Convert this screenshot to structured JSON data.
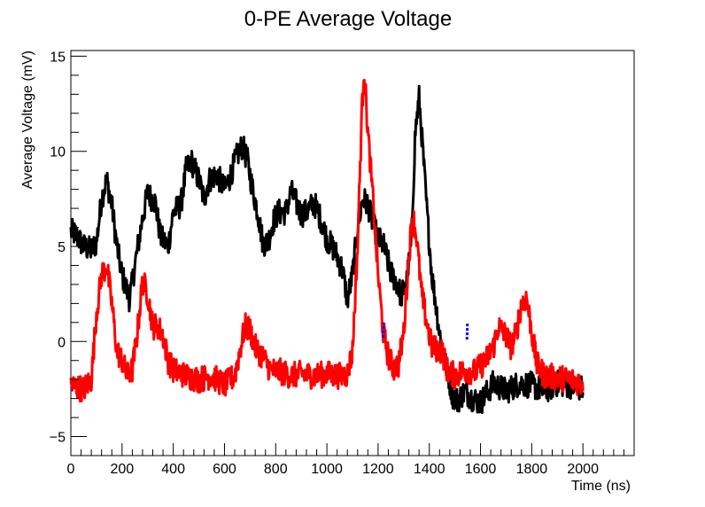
{
  "chart_data": {
    "type": "line",
    "title": "0-PE Average Voltage",
    "xlabel": "Time (ns)",
    "ylabel": "Average Voltage (mV)",
    "xlim": [
      0,
      2200
    ],
    "ylim": [
      -6,
      15.3
    ],
    "x_ticks": [
      0,
      200,
      400,
      600,
      800,
      1000,
      1200,
      1400,
      1600,
      1800,
      2000
    ],
    "y_ticks": [
      -5,
      0,
      5,
      10,
      15
    ],
    "grid": false,
    "legend": "none",
    "noise_amplitude_mV": 0.7,
    "series": [
      {
        "color": "#000000",
        "line_style": "solid",
        "points": [
          [
            0,
            5.8
          ],
          [
            20,
            5.6
          ],
          [
            50,
            5.0
          ],
          [
            80,
            4.8
          ],
          [
            100,
            5.2
          ],
          [
            120,
            7.5
          ],
          [
            140,
            8.5
          ],
          [
            160,
            7.2
          ],
          [
            180,
            5.0
          ],
          [
            200,
            3.5
          ],
          [
            230,
            2.2
          ],
          [
            250,
            4.0
          ],
          [
            280,
            6.5
          ],
          [
            300,
            7.8
          ],
          [
            330,
            7.3
          ],
          [
            350,
            5.5
          ],
          [
            380,
            5.0
          ],
          [
            400,
            6.8
          ],
          [
            430,
            7.2
          ],
          [
            450,
            9.0
          ],
          [
            470,
            9.5
          ],
          [
            500,
            8.5
          ],
          [
            520,
            7.5
          ],
          [
            540,
            8.5
          ],
          [
            570,
            8.8
          ],
          [
            600,
            8.0
          ],
          [
            620,
            8.6
          ],
          [
            650,
            9.8
          ],
          [
            670,
            10.3
          ],
          [
            690,
            9.5
          ],
          [
            710,
            8.0
          ],
          [
            730,
            6.8
          ],
          [
            750,
            5.2
          ],
          [
            770,
            5.2
          ],
          [
            790,
            6.3
          ],
          [
            810,
            6.8
          ],
          [
            840,
            6.8
          ],
          [
            860,
            7.9
          ],
          [
            880,
            7.3
          ],
          [
            900,
            6.7
          ],
          [
            920,
            6.8
          ],
          [
            950,
            7.3
          ],
          [
            980,
            6.3
          ],
          [
            1000,
            5.4
          ],
          [
            1030,
            4.8
          ],
          [
            1060,
            3.8
          ],
          [
            1080,
            2.2
          ],
          [
            1100,
            3.5
          ],
          [
            1120,
            6.0
          ],
          [
            1140,
            7.5
          ],
          [
            1160,
            7.2
          ],
          [
            1180,
            6.2
          ],
          [
            1200,
            5.4
          ],
          [
            1220,
            5.1
          ],
          [
            1250,
            3.6
          ],
          [
            1270,
            3.2
          ],
          [
            1290,
            2.4
          ],
          [
            1310,
            3.0
          ],
          [
            1330,
            5.2
          ],
          [
            1345,
            11.0
          ],
          [
            1360,
            12.8
          ],
          [
            1375,
            10.0
          ],
          [
            1390,
            7.0
          ],
          [
            1410,
            3.5
          ],
          [
            1430,
            1.5
          ],
          [
            1450,
            -0.5
          ],
          [
            1470,
            -1.5
          ],
          [
            1490,
            -2.8
          ],
          [
            1510,
            -3.1
          ],
          [
            1540,
            -2.6
          ],
          [
            1570,
            -3.0
          ],
          [
            1600,
            -3.2
          ],
          [
            1650,
            -2.2
          ],
          [
            1700,
            -2.6
          ],
          [
            1750,
            -2.2
          ],
          [
            1800,
            -2.3
          ],
          [
            1850,
            -2.6
          ],
          [
            1900,
            -2.2
          ],
          [
            1950,
            -2.3
          ],
          [
            2000,
            -2.5
          ]
        ]
      },
      {
        "color": "#ff0000",
        "line_style": "solid",
        "points": [
          [
            0,
            -2.3
          ],
          [
            50,
            -2.5
          ],
          [
            80,
            -2.0
          ],
          [
            100,
            1.5
          ],
          [
            120,
            3.5
          ],
          [
            140,
            4.0
          ],
          [
            160,
            2.0
          ],
          [
            180,
            -0.5
          ],
          [
            200,
            -1.0
          ],
          [
            220,
            -1.8
          ],
          [
            240,
            -1.5
          ],
          [
            260,
            0.5
          ],
          [
            280,
            3.2
          ],
          [
            300,
            2.5
          ],
          [
            320,
            0.8
          ],
          [
            340,
            0.8
          ],
          [
            360,
            0.3
          ],
          [
            380,
            -1.0
          ],
          [
            400,
            -1.5
          ],
          [
            450,
            -1.8
          ],
          [
            500,
            -2.0
          ],
          [
            550,
            -1.8
          ],
          [
            600,
            -2.3
          ],
          [
            640,
            -1.8
          ],
          [
            660,
            -0.5
          ],
          [
            680,
            0.8
          ],
          [
            700,
            0.6
          ],
          [
            720,
            -0.3
          ],
          [
            750,
            -0.8
          ],
          [
            780,
            -1.5
          ],
          [
            820,
            -1.6
          ],
          [
            860,
            -1.8
          ],
          [
            900,
            -1.7
          ],
          [
            950,
            -1.8
          ],
          [
            1000,
            -1.7
          ],
          [
            1050,
            -1.8
          ],
          [
            1080,
            -1.7
          ],
          [
            1100,
            -0.5
          ],
          [
            1120,
            5.0
          ],
          [
            1135,
            11.5
          ],
          [
            1145,
            14.5
          ],
          [
            1160,
            11.0
          ],
          [
            1180,
            7.5
          ],
          [
            1200,
            3.5
          ],
          [
            1220,
            0.5
          ],
          [
            1240,
            -0.8
          ],
          [
            1260,
            -1.4
          ],
          [
            1280,
            -1.2
          ],
          [
            1300,
            0.5
          ],
          [
            1320,
            4.5
          ],
          [
            1335,
            6.7
          ],
          [
            1350,
            5.5
          ],
          [
            1370,
            2.5
          ],
          [
            1390,
            1.0
          ],
          [
            1410,
            -0.3
          ],
          [
            1430,
            -0.4
          ],
          [
            1450,
            -0.5
          ],
          [
            1470,
            -1.5
          ],
          [
            1500,
            -1.8
          ],
          [
            1540,
            -1.5
          ],
          [
            1580,
            -1.6
          ],
          [
            1620,
            -1.0
          ],
          [
            1650,
            -0.3
          ],
          [
            1670,
            0.8
          ],
          [
            1700,
            0.3
          ],
          [
            1720,
            -0.3
          ],
          [
            1740,
            0.5
          ],
          [
            1760,
            2.0
          ],
          [
            1780,
            2.3
          ],
          [
            1800,
            0.5
          ],
          [
            1820,
            -1.2
          ],
          [
            1850,
            -1.8
          ],
          [
            1900,
            -1.9
          ],
          [
            1950,
            -2.0
          ],
          [
            2000,
            -2.2
          ]
        ]
      },
      {
        "color": "#0000ff",
        "line_style": "dashed",
        "points": [
          [
            1220,
            0.2
          ],
          [
            1222,
            1.0
          ]
        ]
      },
      {
        "color": "#0000ff",
        "line_style": "dashed",
        "points": [
          [
            1547,
            0.1
          ],
          [
            1549,
            1.0
          ]
        ]
      }
    ]
  }
}
